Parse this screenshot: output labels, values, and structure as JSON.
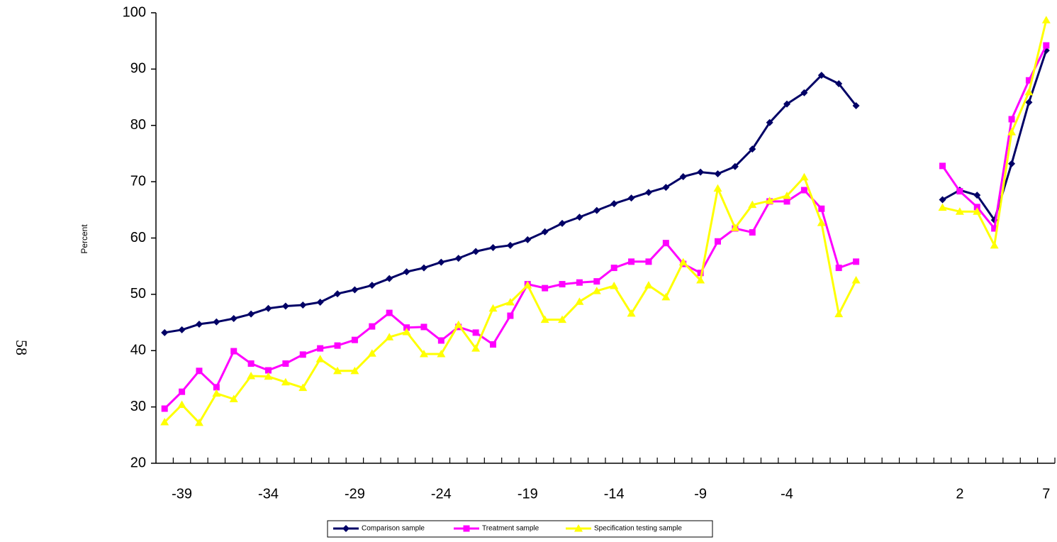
{
  "page_number": "58",
  "chart_data": {
    "type": "line",
    "y_label": "Percent",
    "categories": [
      null,
      "-39",
      null,
      null,
      null,
      null,
      "-34",
      null,
      null,
      null,
      null,
      "-29",
      null,
      null,
      null,
      null,
      "-24",
      null,
      null,
      null,
      null,
      "-19",
      null,
      null,
      null,
      null,
      "-14",
      null,
      null,
      null,
      null,
      "-9",
      null,
      null,
      null,
      null,
      "-4",
      null,
      null,
      null,
      null,
      null,
      null,
      null,
      null,
      null,
      "2",
      null,
      null,
      null,
      null,
      "7"
    ],
    "series": [
      {
        "name": "Comparison sample",
        "color": "#000066",
        "marker": "diamond",
        "values": [
          43.2,
          43.7,
          44.7,
          45.1,
          45.7,
          46.5,
          47.5,
          47.9,
          48.1,
          48.6,
          50.1,
          50.8,
          51.6,
          52.8,
          54.0,
          54.7,
          55.7,
          56.4,
          57.6,
          58.3,
          58.7,
          59.7,
          61.1,
          62.6,
          63.7,
          64.9,
          66.1,
          67.1,
          68.1,
          69.0,
          70.9,
          71.7,
          71.4,
          72.7,
          75.8,
          80.5,
          83.8,
          85.8,
          88.9,
          87.4,
          83.5,
          null,
          null,
          null,
          null,
          66.8,
          68.5,
          67.6,
          63.2,
          73.2,
          84.1,
          93.3
        ]
      },
      {
        "name": "Treatment sample",
        "color": "#ff00ff",
        "marker": "square",
        "values": [
          29.7,
          32.7,
          36.4,
          33.5,
          39.9,
          37.7,
          36.5,
          37.7,
          39.3,
          40.4,
          40.9,
          41.9,
          44.3,
          46.7,
          44.1,
          44.2,
          41.8,
          44.2,
          43.2,
          41.1,
          46.2,
          51.8,
          51.1,
          51.8,
          52.1,
          52.3,
          54.7,
          55.8,
          55.8,
          59.1,
          55.4,
          53.8,
          59.4,
          61.7,
          61.0,
          66.5,
          66.5,
          68.5,
          65.2,
          54.7,
          55.8,
          null,
          null,
          null,
          null,
          72.8,
          68.3,
          65.5,
          61.7,
          81.1,
          88.0,
          94.2
        ]
      },
      {
        "name": "Specification testing sample",
        "color": "#ffff00",
        "marker": "triangle",
        "values": [
          27.3,
          30.4,
          27.2,
          32.4,
          31.4,
          35.5,
          35.4,
          34.4,
          33.4,
          38.5,
          36.4,
          36.4,
          39.5,
          42.4,
          43.3,
          39.4,
          39.4,
          44.6,
          40.4,
          47.5,
          48.6,
          51.6,
          45.5,
          45.5,
          48.7,
          50.6,
          51.5,
          46.6,
          51.6,
          49.5,
          55.7,
          52.5,
          68.8,
          61.8,
          65.9,
          66.6,
          67.5,
          70.8,
          62.7,
          46.5,
          52.5,
          null,
          null,
          null,
          null,
          65.4,
          64.7,
          64.7,
          58.7,
          78.8,
          85.9,
          98.7
        ]
      }
    ],
    "ylim": [
      20,
      100
    ],
    "yticks": [
      20,
      30,
      40,
      50,
      60,
      70,
      80,
      90,
      100
    ],
    "grid": false,
    "legend": "bottom"
  }
}
